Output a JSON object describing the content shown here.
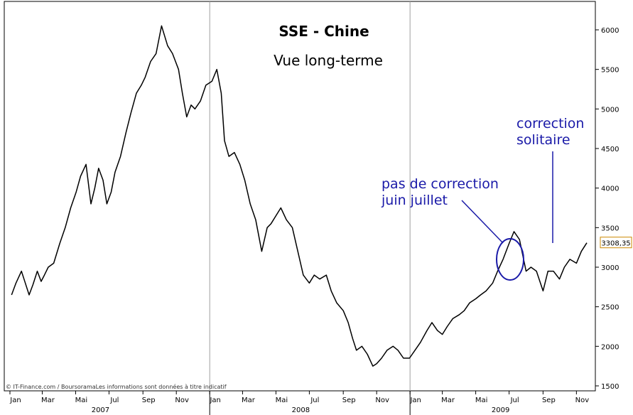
{
  "title": "SSE - Chine",
  "subtitle": "Vue long-terme",
  "copyright": "© IT-Finance.com / BoursoramaLes informations sont données à titre indicatif",
  "colors": {
    "line": "#000000",
    "annotation": "#1a1aa8",
    "grid_separator": "#a0a0a0",
    "frame": "#000000"
  },
  "annotations": {
    "no_correction": [
      "pas de correction",
      "juin juillet"
    ],
    "solitary_correction": [
      "correction",
      "solitaire"
    ]
  },
  "chart_data": {
    "type": "line",
    "title": "SSE - Chine",
    "subtitle": "Vue long-terme",
    "ylim": [
      1500,
      6300
    ],
    "y_ticks": [
      1500,
      2000,
      2500,
      3000,
      3500,
      4000,
      4500,
      5000,
      5500,
      6000
    ],
    "y_tick_labels": [
      "1500",
      "2000",
      "2500",
      "3000",
      "3500",
      "4000",
      "4500",
      "5000",
      "5500",
      "6000"
    ],
    "x_domain": [
      "2007-01-01",
      "2009-11-20"
    ],
    "x_ticks": [
      "2007-01-01",
      "2007-03-01",
      "2007-05-01",
      "2007-07-01",
      "2007-09-01",
      "2007-11-01",
      "2008-01-01",
      "2008-03-01",
      "2008-05-01",
      "2008-07-01",
      "2008-09-01",
      "2008-11-01",
      "2009-01-01",
      "2009-03-01",
      "2009-05-01",
      "2009-07-01",
      "2009-09-01",
      "2009-11-01"
    ],
    "x_tick_labels": [
      "Jan",
      "Mar",
      "Mai",
      "Jul",
      "Sep",
      "Nov",
      "Jan",
      "Mar",
      "Mai",
      "Jul",
      "Sep",
      "Nov",
      "Jan",
      "Mar",
      "Mai",
      "Jul",
      "Sep",
      "Nov"
    ],
    "years": [
      {
        "label": "2007",
        "center": "2007-07-01",
        "start": "2007-01-01"
      },
      {
        "label": "2008",
        "center": "2008-07-01",
        "start": "2008-01-01"
      },
      {
        "label": "2009",
        "center": "2009-07-01",
        "start": "2009-01-01"
      }
    ],
    "last_value": 3308.35,
    "last_value_label": "3308,35",
    "series": [
      {
        "x": [
          "2007-01-04",
          "2007-01-12",
          "2007-01-22",
          "2007-01-29",
          "2007-02-05",
          "2007-02-12",
          "2007-02-20",
          "2007-02-27",
          "2007-03-05",
          "2007-03-12",
          "2007-03-22",
          "2007-04-02",
          "2007-04-12",
          "2007-04-22",
          "2007-05-02",
          "2007-05-10",
          "2007-05-20",
          "2007-05-29",
          "2007-06-05",
          "2007-06-12",
          "2007-06-20",
          "2007-06-27",
          "2007-07-05",
          "2007-07-12",
          "2007-07-22",
          "2007-08-01",
          "2007-08-10",
          "2007-08-20",
          "2007-08-29",
          "2007-09-05",
          "2007-09-15",
          "2007-09-25",
          "2007-10-05",
          "2007-10-16",
          "2007-10-25",
          "2007-11-05",
          "2007-11-12",
          "2007-11-20",
          "2007-11-28",
          "2007-12-05",
          "2007-12-15",
          "2007-12-25",
          "2008-01-05",
          "2008-01-14",
          "2008-01-22",
          "2008-01-28",
          "2008-02-05",
          "2008-02-15",
          "2008-02-25",
          "2008-03-05",
          "2008-03-15",
          "2008-03-25",
          "2008-04-05",
          "2008-04-15",
          "2008-04-22",
          "2008-05-01",
          "2008-05-10",
          "2008-05-20",
          "2008-05-31",
          "2008-06-10",
          "2008-06-20",
          "2008-07-01",
          "2008-07-10",
          "2008-07-20",
          "2008-08-01",
          "2008-08-10",
          "2008-08-20",
          "2008-09-01",
          "2008-09-10",
          "2008-09-18",
          "2008-09-25",
          "2008-10-05",
          "2008-10-15",
          "2008-10-25",
          "2008-11-01",
          "2008-11-10",
          "2008-11-20",
          "2008-12-01",
          "2008-12-10",
          "2008-12-20",
          "2008-12-31",
          "2009-01-10",
          "2009-01-20",
          "2009-02-01",
          "2009-02-10",
          "2009-02-20",
          "2009-03-01",
          "2009-03-10",
          "2009-03-20",
          "2009-04-01",
          "2009-04-10",
          "2009-04-20",
          "2009-05-01",
          "2009-05-10",
          "2009-05-20",
          "2009-06-01",
          "2009-06-10",
          "2009-06-20",
          "2009-07-01",
          "2009-07-10",
          "2009-07-20",
          "2009-08-01",
          "2009-08-10",
          "2009-08-20",
          "2009-09-01",
          "2009-09-10",
          "2009-09-20",
          "2009-10-01",
          "2009-10-10",
          "2009-10-20",
          "2009-11-01",
          "2009-11-10",
          "2009-11-20"
        ],
        "values": [
          2650,
          2800,
          2950,
          2800,
          2650,
          2780,
          2950,
          2820,
          2900,
          3000,
          3050,
          3300,
          3500,
          3750,
          3950,
          4150,
          4300,
          3800,
          4000,
          4250,
          4100,
          3800,
          3950,
          4200,
          4400,
          4700,
          4950,
          5200,
          5300,
          5400,
          5600,
          5700,
          6050,
          5800,
          5700,
          5500,
          5200,
          4900,
          5050,
          5000,
          5100,
          5300,
          5350,
          5500,
          5200,
          4600,
          4400,
          4450,
          4300,
          4100,
          3800,
          3600,
          3200,
          3500,
          3550,
          3650,
          3750,
          3600,
          3500,
          3200,
          2900,
          2800,
          2900,
          2850,
          2900,
          2700,
          2550,
          2450,
          2300,
          2100,
          1950,
          2000,
          1900,
          1750,
          1780,
          1850,
          1950,
          2000,
          1950,
          1850,
          1850,
          1950,
          2050,
          2200,
          2300,
          2200,
          2150,
          2250,
          2350,
          2400,
          2450,
          2550,
          2600,
          2650,
          2700,
          2800,
          2950,
          3100,
          3300,
          3450,
          3350,
          2950,
          3000,
          2950,
          2700,
          2950,
          2950,
          2850,
          3000,
          3100,
          3050,
          3200,
          3308.35
        ]
      }
    ]
  }
}
